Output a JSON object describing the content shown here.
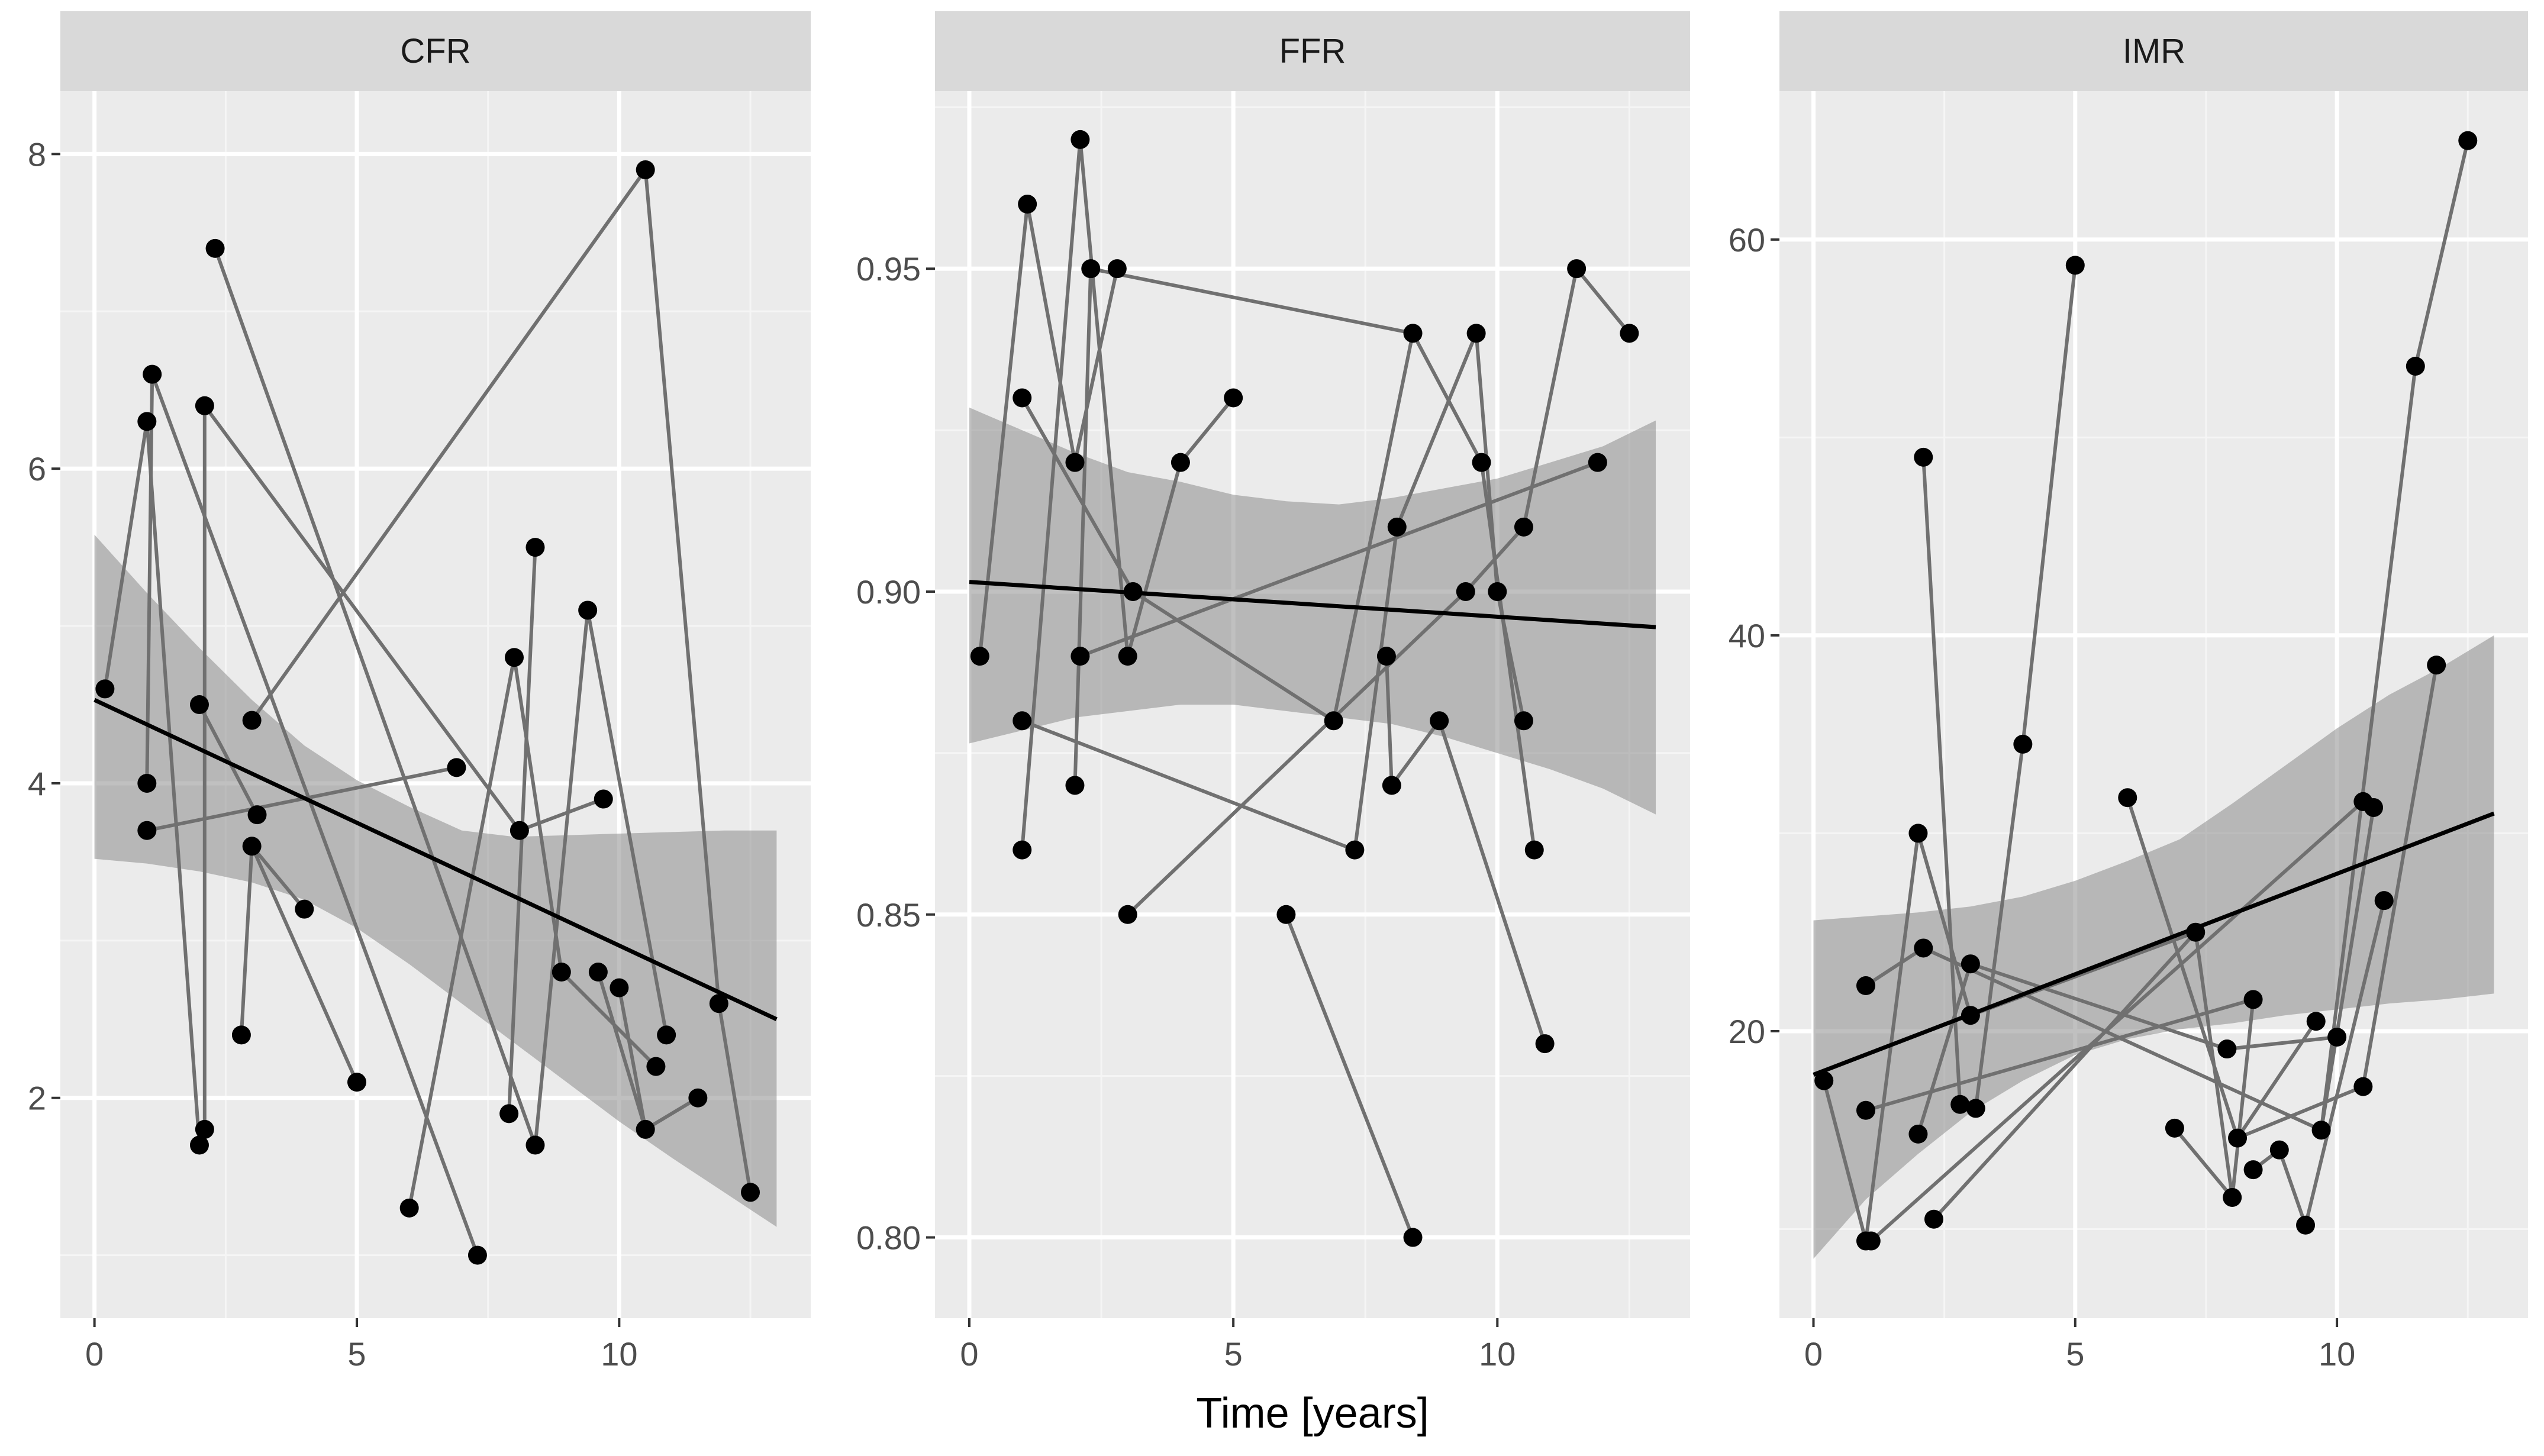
{
  "chart_data": [
    {
      "type": "scatter",
      "title": "CFR",
      "xlabel": "",
      "ylabel": "",
      "xlim": [
        -0.65,
        13.65
      ],
      "ylim": [
        0.6,
        8.4
      ],
      "x_ticks": [
        0,
        5,
        10
      ],
      "y_ticks": [
        2,
        4,
        6,
        8
      ],
      "grid": true,
      "points": [
        {
          "x": 0.2,
          "y": 4.6
        },
        {
          "x": 1.0,
          "y": 6.3
        },
        {
          "x": 1.0,
          "y": 4.0
        },
        {
          "x": 1.0,
          "y": 3.7
        },
        {
          "x": 1.1,
          "y": 6.6
        },
        {
          "x": 2.0,
          "y": 4.5
        },
        {
          "x": 2.0,
          "y": 1.7
        },
        {
          "x": 2.1,
          "y": 1.8
        },
        {
          "x": 2.1,
          "y": 6.4
        },
        {
          "x": 2.3,
          "y": 7.4
        },
        {
          "x": 2.8,
          "y": 2.4
        },
        {
          "x": 3.0,
          "y": 3.6
        },
        {
          "x": 3.0,
          "y": 4.4
        },
        {
          "x": 3.1,
          "y": 3.8
        },
        {
          "x": 4.0,
          "y": 3.2
        },
        {
          "x": 5.0,
          "y": 2.1
        },
        {
          "x": 6.0,
          "y": 1.3
        },
        {
          "x": 6.9,
          "y": 4.1
        },
        {
          "x": 7.3,
          "y": 1.0
        },
        {
          "x": 7.9,
          "y": 1.9
        },
        {
          "x": 8.0,
          "y": 4.8
        },
        {
          "x": 8.1,
          "y": 3.7
        },
        {
          "x": 8.4,
          "y": 5.5
        },
        {
          "x": 8.4,
          "y": 1.7
        },
        {
          "x": 8.9,
          "y": 2.8
        },
        {
          "x": 9.4,
          "y": 5.1
        },
        {
          "x": 9.6,
          "y": 2.8
        },
        {
          "x": 9.7,
          "y": 3.9
        },
        {
          "x": 10.0,
          "y": 2.7
        },
        {
          "x": 10.5,
          "y": 7.9
        },
        {
          "x": 10.5,
          "y": 1.8
        },
        {
          "x": 10.7,
          "y": 2.2
        },
        {
          "x": 10.9,
          "y": 2.4
        },
        {
          "x": 11.5,
          "y": 2.0
        },
        {
          "x": 11.9,
          "y": 2.6
        },
        {
          "x": 12.5,
          "y": 1.4
        }
      ],
      "paths": [
        [
          [
            0.2,
            4.6
          ],
          [
            1.0,
            6.3
          ],
          [
            2.0,
            1.7
          ]
        ],
        [
          [
            1.0,
            3.7
          ],
          [
            6.9,
            4.1
          ]
        ],
        [
          [
            1.0,
            4.0
          ],
          [
            1.1,
            6.6
          ],
          [
            7.3,
            1.0
          ]
        ],
        [
          [
            2.0,
            4.5
          ],
          [
            3.1,
            3.8
          ]
        ],
        [
          [
            2.1,
            1.8
          ],
          [
            2.1,
            6.4
          ],
          [
            8.1,
            3.7
          ],
          [
            9.7,
            3.9
          ]
        ],
        [
          [
            2.3,
            7.4
          ],
          [
            8.4,
            1.7
          ],
          [
            9.4,
            5.1
          ],
          [
            10.9,
            2.4
          ]
        ],
        [
          [
            2.8,
            2.4
          ],
          [
            3.0,
            3.6
          ],
          [
            4.0,
            3.2
          ]
        ],
        [
          [
            3.0,
            3.6
          ],
          [
            5.0,
            2.1
          ]
        ],
        [
          [
            3.0,
            4.4
          ],
          [
            10.5,
            7.9
          ],
          [
            11.9,
            2.6
          ],
          [
            12.5,
            1.4
          ]
        ],
        [
          [
            6.0,
            1.3
          ],
          [
            8.0,
            4.8
          ],
          [
            8.9,
            2.8
          ],
          [
            10.7,
            2.2
          ]
        ],
        [
          [
            7.9,
            1.9
          ],
          [
            8.4,
            5.5
          ]
        ],
        [
          [
            9.6,
            2.8
          ],
          [
            10.5,
            1.8
          ],
          [
            11.5,
            2.0
          ]
        ],
        [
          [
            10.0,
            2.7
          ],
          [
            10.5,
            1.8
          ]
        ]
      ],
      "trend": {
        "x0": 0,
        "y0": 4.53,
        "x1": 13,
        "y1": 2.5
      },
      "band": {
        "x": [
          0,
          1,
          2,
          3,
          4,
          5,
          6,
          7,
          8,
          9,
          10,
          11,
          12,
          13
        ],
        "lower": [
          3.52,
          3.49,
          3.44,
          3.37,
          3.26,
          3.08,
          2.85,
          2.6,
          2.35,
          2.1,
          1.85,
          1.62,
          1.4,
          1.18
        ],
        "upper": [
          5.58,
          5.21,
          4.86,
          4.53,
          4.24,
          4.02,
          3.85,
          3.7,
          3.66,
          3.67,
          3.68,
          3.69,
          3.7,
          3.7
        ]
      }
    },
    {
      "type": "scatter",
      "title": "FFR",
      "xlabel": "Time [years]",
      "ylabel": "",
      "xlim": [
        -0.65,
        13.65
      ],
      "ylim": [
        0.7875,
        0.9775
      ],
      "x_ticks": [
        0,
        5,
        10
      ],
      "y_ticks": [
        0.8,
        0.85,
        0.9,
        0.95
      ],
      "grid": true,
      "points": [
        {
          "x": 0.2,
          "y": 0.89
        },
        {
          "x": 1.0,
          "y": 0.93
        },
        {
          "x": 1.0,
          "y": 0.88
        },
        {
          "x": 1.0,
          "y": 0.86
        },
        {
          "x": 1.1,
          "y": 0.96
        },
        {
          "x": 2.0,
          "y": 0.92
        },
        {
          "x": 2.0,
          "y": 0.87
        },
        {
          "x": 2.1,
          "y": 0.89
        },
        {
          "x": 2.1,
          "y": 0.97
        },
        {
          "x": 2.3,
          "y": 0.95
        },
        {
          "x": 2.8,
          "y": 0.95
        },
        {
          "x": 3.0,
          "y": 0.89
        },
        {
          "x": 3.0,
          "y": 0.85
        },
        {
          "x": 3.1,
          "y": 0.9
        },
        {
          "x": 4.0,
          "y": 0.92
        },
        {
          "x": 5.0,
          "y": 0.93
        },
        {
          "x": 6.0,
          "y": 0.85
        },
        {
          "x": 6.9,
          "y": 0.88
        },
        {
          "x": 7.3,
          "y": 0.86
        },
        {
          "x": 7.9,
          "y": 0.89
        },
        {
          "x": 8.0,
          "y": 0.87
        },
        {
          "x": 8.1,
          "y": 0.91
        },
        {
          "x": 8.4,
          "y": 0.94
        },
        {
          "x": 8.4,
          "y": 0.8
        },
        {
          "x": 8.9,
          "y": 0.88
        },
        {
          "x": 9.4,
          "y": 0.9
        },
        {
          "x": 9.6,
          "y": 0.94
        },
        {
          "x": 9.7,
          "y": 0.92
        },
        {
          "x": 10.0,
          "y": 0.9
        },
        {
          "x": 10.5,
          "y": 0.91
        },
        {
          "x": 10.5,
          "y": 0.88
        },
        {
          "x": 10.7,
          "y": 0.86
        },
        {
          "x": 10.9,
          "y": 0.83
        },
        {
          "x": 11.5,
          "y": 0.95
        },
        {
          "x": 11.9,
          "y": 0.92
        },
        {
          "x": 12.5,
          "y": 0.94
        }
      ],
      "paths": [
        [
          [
            0.2,
            0.89
          ],
          [
            1.1,
            0.96
          ],
          [
            2.0,
            0.92
          ],
          [
            2.8,
            0.95
          ]
        ],
        [
          [
            1.0,
            0.93
          ],
          [
            3.1,
            0.9
          ],
          [
            6.9,
            0.88
          ],
          [
            8.4,
            0.94
          ],
          [
            9.7,
            0.92
          ],
          [
            10.7,
            0.86
          ]
        ],
        [
          [
            1.0,
            0.88
          ],
          [
            7.3,
            0.86
          ],
          [
            8.1,
            0.91
          ],
          [
            9.6,
            0.94
          ],
          [
            10.0,
            0.9
          ],
          [
            10.5,
            0.88
          ]
        ],
        [
          [
            1.0,
            0.86
          ],
          [
            2.1,
            0.97
          ],
          [
            3.0,
            0.89
          ]
        ],
        [
          [
            2.0,
            0.87
          ],
          [
            2.3,
            0.95
          ],
          [
            8.4,
            0.94
          ]
        ],
        [
          [
            2.1,
            0.89
          ],
          [
            11.9,
            0.92
          ]
        ],
        [
          [
            3.0,
            0.89
          ],
          [
            4.0,
            0.92
          ],
          [
            5.0,
            0.93
          ]
        ],
        [
          [
            3.0,
            0.85
          ],
          [
            9.4,
            0.9
          ],
          [
            10.5,
            0.91
          ],
          [
            11.5,
            0.95
          ],
          [
            12.5,
            0.94
          ]
        ],
        [
          [
            6.0,
            0.85
          ],
          [
            8.4,
            0.8
          ]
        ],
        [
          [
            7.9,
            0.89
          ],
          [
            8.0,
            0.87
          ],
          [
            8.9,
            0.88
          ],
          [
            10.9,
            0.83
          ]
        ]
      ],
      "trend": {
        "x0": 0,
        "y0": 0.9015,
        "x1": 13,
        "y1": 0.8945
      },
      "band": {
        "x": [
          0,
          1,
          2,
          3,
          4,
          5,
          6,
          7,
          8,
          9,
          10,
          11,
          12,
          13
        ],
        "lower": [
          0.8765,
          0.8785,
          0.8805,
          0.8815,
          0.8825,
          0.8825,
          0.8815,
          0.8805,
          0.8795,
          0.8775,
          0.875,
          0.8725,
          0.8695,
          0.8655
        ],
        "upper": [
          0.9285,
          0.925,
          0.9215,
          0.9185,
          0.917,
          0.915,
          0.914,
          0.9135,
          0.9145,
          0.916,
          0.9175,
          0.92,
          0.9225,
          0.9265
        ]
      }
    },
    {
      "type": "scatter",
      "title": "IMR",
      "xlabel": "",
      "ylabel": "",
      "xlim": [
        -0.65,
        13.65
      ],
      "ylim": [
        5.5,
        67.5
      ],
      "x_ticks": [
        0,
        5,
        10
      ],
      "y_ticks": [
        20,
        40,
        60
      ],
      "grid": true,
      "points": [
        {
          "x": 0.2,
          "y": 17.5
        },
        {
          "x": 1.0,
          "y": 22.3
        },
        {
          "x": 1.0,
          "y": 16.0
        },
        {
          "x": 1.0,
          "y": 9.4
        },
        {
          "x": 1.1,
          "y": 9.4
        },
        {
          "x": 2.0,
          "y": 30.0
        },
        {
          "x": 2.0,
          "y": 14.8
        },
        {
          "x": 2.1,
          "y": 49.0
        },
        {
          "x": 2.1,
          "y": 24.2
        },
        {
          "x": 2.3,
          "y": 10.5
        },
        {
          "x": 2.8,
          "y": 16.3
        },
        {
          "x": 3.0,
          "y": 23.4
        },
        {
          "x": 3.0,
          "y": 20.8
        },
        {
          "x": 3.1,
          "y": 16.1
        },
        {
          "x": 4.0,
          "y": 34.5
        },
        {
          "x": 5.0,
          "y": 58.7
        },
        {
          "x": 6.0,
          "y": 31.8
        },
        {
          "x": 6.9,
          "y": 15.1
        },
        {
          "x": 7.3,
          "y": 25.0
        },
        {
          "x": 7.9,
          "y": 19.1
        },
        {
          "x": 8.0,
          "y": 11.6
        },
        {
          "x": 8.1,
          "y": 14.6
        },
        {
          "x": 8.4,
          "y": 21.6
        },
        {
          "x": 8.4,
          "y": 13.0
        },
        {
          "x": 8.9,
          "y": 14.0
        },
        {
          "x": 9.4,
          "y": 10.2
        },
        {
          "x": 9.6,
          "y": 20.5
        },
        {
          "x": 9.7,
          "y": 15.0
        },
        {
          "x": 10.0,
          "y": 19.7
        },
        {
          "x": 10.5,
          "y": 31.6
        },
        {
          "x": 10.5,
          "y": 17.2
        },
        {
          "x": 10.7,
          "y": 31.3
        },
        {
          "x": 10.9,
          "y": 26.6
        },
        {
          "x": 11.5,
          "y": 53.6
        },
        {
          "x": 11.9,
          "y": 38.5
        },
        {
          "x": 12.5,
          "y": 65.0
        }
      ],
      "paths": [
        [
          [
            0.2,
            17.5
          ],
          [
            1.0,
            9.4
          ],
          [
            2.0,
            30.0
          ],
          [
            3.0,
            20.8
          ],
          [
            7.3,
            25.0
          ],
          [
            8.0,
            11.6
          ],
          [
            8.4,
            21.6
          ]
        ],
        [
          [
            1.0,
            22.3
          ],
          [
            2.1,
            24.2
          ],
          [
            9.7,
            15.0
          ],
          [
            11.5,
            53.6
          ],
          [
            12.5,
            65.0
          ]
        ],
        [
          [
            1.0,
            16.0
          ],
          [
            8.4,
            21.6
          ]
        ],
        [
          [
            1.1,
            9.4
          ],
          [
            10.5,
            31.6
          ]
        ],
        [
          [
            2.0,
            14.8
          ],
          [
            3.0,
            23.4
          ],
          [
            7.9,
            19.1
          ],
          [
            10.0,
            19.7
          ]
        ],
        [
          [
            2.1,
            49.0
          ],
          [
            2.8,
            16.3
          ]
        ],
        [
          [
            2.3,
            10.5
          ],
          [
            7.3,
            25.0
          ]
        ],
        [
          [
            3.1,
            16.1
          ],
          [
            4.0,
            34.5
          ],
          [
            5.0,
            58.7
          ]
        ],
        [
          [
            6.0,
            31.8
          ],
          [
            8.1,
            14.6
          ],
          [
            9.6,
            20.5
          ]
        ],
        [
          [
            6.9,
            15.1
          ],
          [
            8.0,
            11.6
          ]
        ],
        [
          [
            8.4,
            13.0
          ],
          [
            8.9,
            14.0
          ],
          [
            9.4,
            10.2
          ],
          [
            10.9,
            26.6
          ]
        ],
        [
          [
            9.7,
            15.0
          ],
          [
            10.7,
            31.3
          ]
        ],
        [
          [
            8.1,
            14.6
          ],
          [
            10.5,
            17.2
          ],
          [
            11.9,
            38.5
          ]
        ]
      ],
      "trend": {
        "x0": 0,
        "y0": 17.8,
        "x1": 13,
        "y1": 31.0
      },
      "band": {
        "x": [
          0,
          1,
          2,
          3,
          4,
          5,
          6,
          7,
          8,
          9,
          10,
          11,
          12,
          13
        ],
        "lower": [
          8.5,
          11.5,
          13.8,
          15.9,
          17.5,
          18.8,
          19.6,
          20.1,
          20.4,
          20.8,
          21.1,
          21.4,
          21.6,
          21.9
        ],
        "upper": [
          25.6,
          25.8,
          26.0,
          26.3,
          26.8,
          27.6,
          28.6,
          29.7,
          31.5,
          33.4,
          35.3,
          37.0,
          38.4,
          40.0
        ]
      }
    }
  ],
  "colors": {
    "panel_background": "#ebebeb",
    "strip_background": "#d9d9d9",
    "grid_major": "#ffffff",
    "grid_minor": "#f5f5f5",
    "path_line": "#707070",
    "point": "#000000",
    "band": "#8c8c8c",
    "trend_line": "#000000"
  }
}
